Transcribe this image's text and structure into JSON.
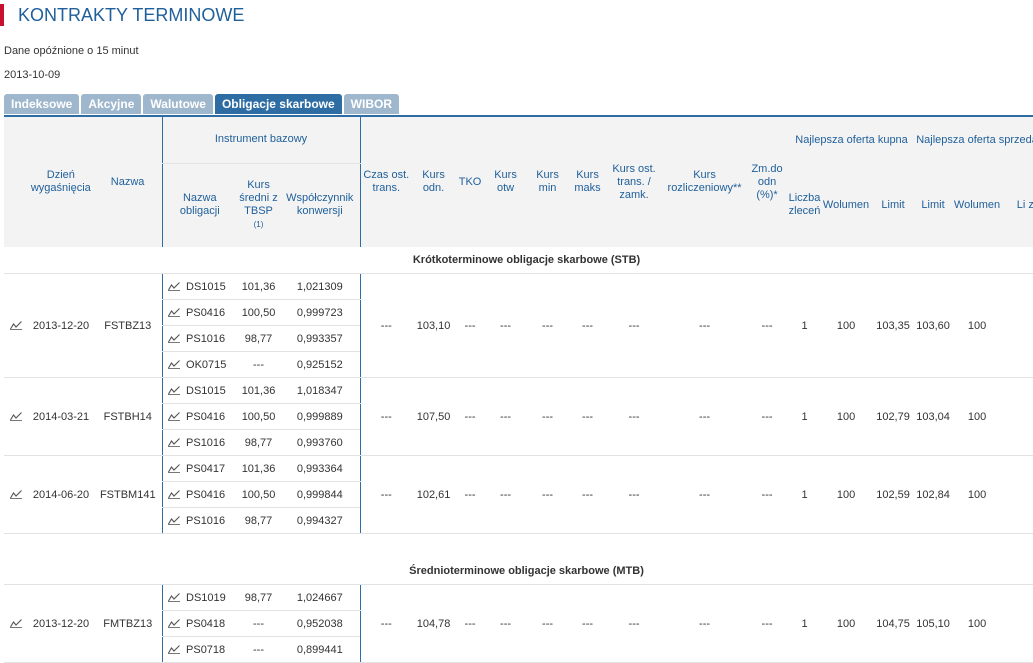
{
  "page": {
    "title": "KONTRAKTY TERMINOWE",
    "delay_note": "Dane opóźnione o 15 minut",
    "date": "2013-10-09"
  },
  "tabs": [
    {
      "label": "Indeksowe"
    },
    {
      "label": "Akcyjne"
    },
    {
      "label": "Walutowe"
    },
    {
      "label": "Obligacje skarbowe"
    },
    {
      "label": "WIBOR"
    }
  ],
  "active_tab": "Obligacje skarbowe",
  "headers": {
    "expiry": "Dzień wygaśnięcia",
    "name": "Nazwa",
    "base_instrument": "Instrument bazowy",
    "bond_name": "Nazwa obligacji",
    "avg_price": "Kurs średni z TBSP",
    "avg_price_note": "(1)",
    "conversion": "Współczynnik konwersji",
    "trans_time": "Czas ost. trans.",
    "ref_price": "Kurs odn.",
    "tko": "TKO",
    "open": "Kurs otw",
    "min": "Kurs min",
    "max": "Kurs maks",
    "last": "Kurs ost. trans. / zamk.",
    "settlement": "Kurs rozliczeniowy**",
    "change": "Zm.do odn (%)*",
    "best_bid": "Najlepsza oferta kupna",
    "best_ask": "Najlepsza oferta sprzedaży",
    "orders": "Liczba zleceń",
    "volume": "Wolumen",
    "limit": "Limit",
    "orders_cut": "Li zl"
  },
  "chart_icon": "chart-line-icon",
  "sections": [
    {
      "title": "Krótkoterminowe obligacje skarbowe (STB)",
      "contracts": [
        {
          "expiry": "2013-12-20",
          "name": "FSTBZ13",
          "trans_time": "---",
          "ref": "103,10",
          "tko": "---",
          "open": "---",
          "min": "---",
          "max": "---",
          "last": "---",
          "settle": "---",
          "change": "---",
          "bid_orders": "1",
          "bid_volume": "100",
          "bid_limit": "103,35",
          "ask_limit": "103,60",
          "ask_volume": "100",
          "bonds": [
            {
              "name": "DS1015",
              "avg": "101,36",
              "conv": "1,021309"
            },
            {
              "name": "PS0416",
              "avg": "100,50",
              "conv": "0,999723"
            },
            {
              "name": "PS1016",
              "avg": "98,77",
              "conv": "0,993357"
            },
            {
              "name": "OK0715",
              "avg": "---",
              "conv": "0,925152"
            }
          ]
        },
        {
          "expiry": "2014-03-21",
          "name": "FSTBH14",
          "trans_time": "---",
          "ref": "107,50",
          "tko": "---",
          "open": "---",
          "min": "---",
          "max": "---",
          "last": "---",
          "settle": "---",
          "change": "---",
          "bid_orders": "1",
          "bid_volume": "100",
          "bid_limit": "102,79",
          "ask_limit": "103,04",
          "ask_volume": "100",
          "bonds": [
            {
              "name": "DS1015",
              "avg": "101,36",
              "conv": "1,018347"
            },
            {
              "name": "PS0416",
              "avg": "100,50",
              "conv": "0,999889"
            },
            {
              "name": "PS1016",
              "avg": "98,77",
              "conv": "0,993760"
            }
          ]
        },
        {
          "expiry": "2014-06-20",
          "name": "FSTBM141",
          "trans_time": "---",
          "ref": "102,61",
          "tko": "---",
          "open": "---",
          "min": "---",
          "max": "---",
          "last": "---",
          "settle": "---",
          "change": "---",
          "bid_orders": "1",
          "bid_volume": "100",
          "bid_limit": "102,59",
          "ask_limit": "102,84",
          "ask_volume": "100",
          "bonds": [
            {
              "name": "PS0417",
              "avg": "101,36",
              "conv": "0,993364"
            },
            {
              "name": "PS0416",
              "avg": "100,50",
              "conv": "0,999844"
            },
            {
              "name": "PS1016",
              "avg": "98,77",
              "conv": "0,994327"
            }
          ]
        }
      ]
    },
    {
      "title": "Średnioterminowe obligacje skarbowe (MTB)",
      "contracts": [
        {
          "expiry": "2013-12-20",
          "name": "FMTBZ13",
          "trans_time": "---",
          "ref": "104,78",
          "tko": "---",
          "open": "---",
          "min": "---",
          "max": "---",
          "last": "---",
          "settle": "---",
          "change": "---",
          "bid_orders": "1",
          "bid_volume": "100",
          "bid_limit": "104,75",
          "ask_limit": "105,10",
          "ask_volume": "100",
          "bonds": [
            {
              "name": "DS1019",
              "avg": "98,77",
              "conv": "1,024667"
            },
            {
              "name": "PS0418",
              "avg": "---",
              "conv": "0,952038"
            },
            {
              "name": "PS0718",
              "avg": "---",
              "conv": "0,899441"
            }
          ]
        }
      ]
    }
  ]
}
